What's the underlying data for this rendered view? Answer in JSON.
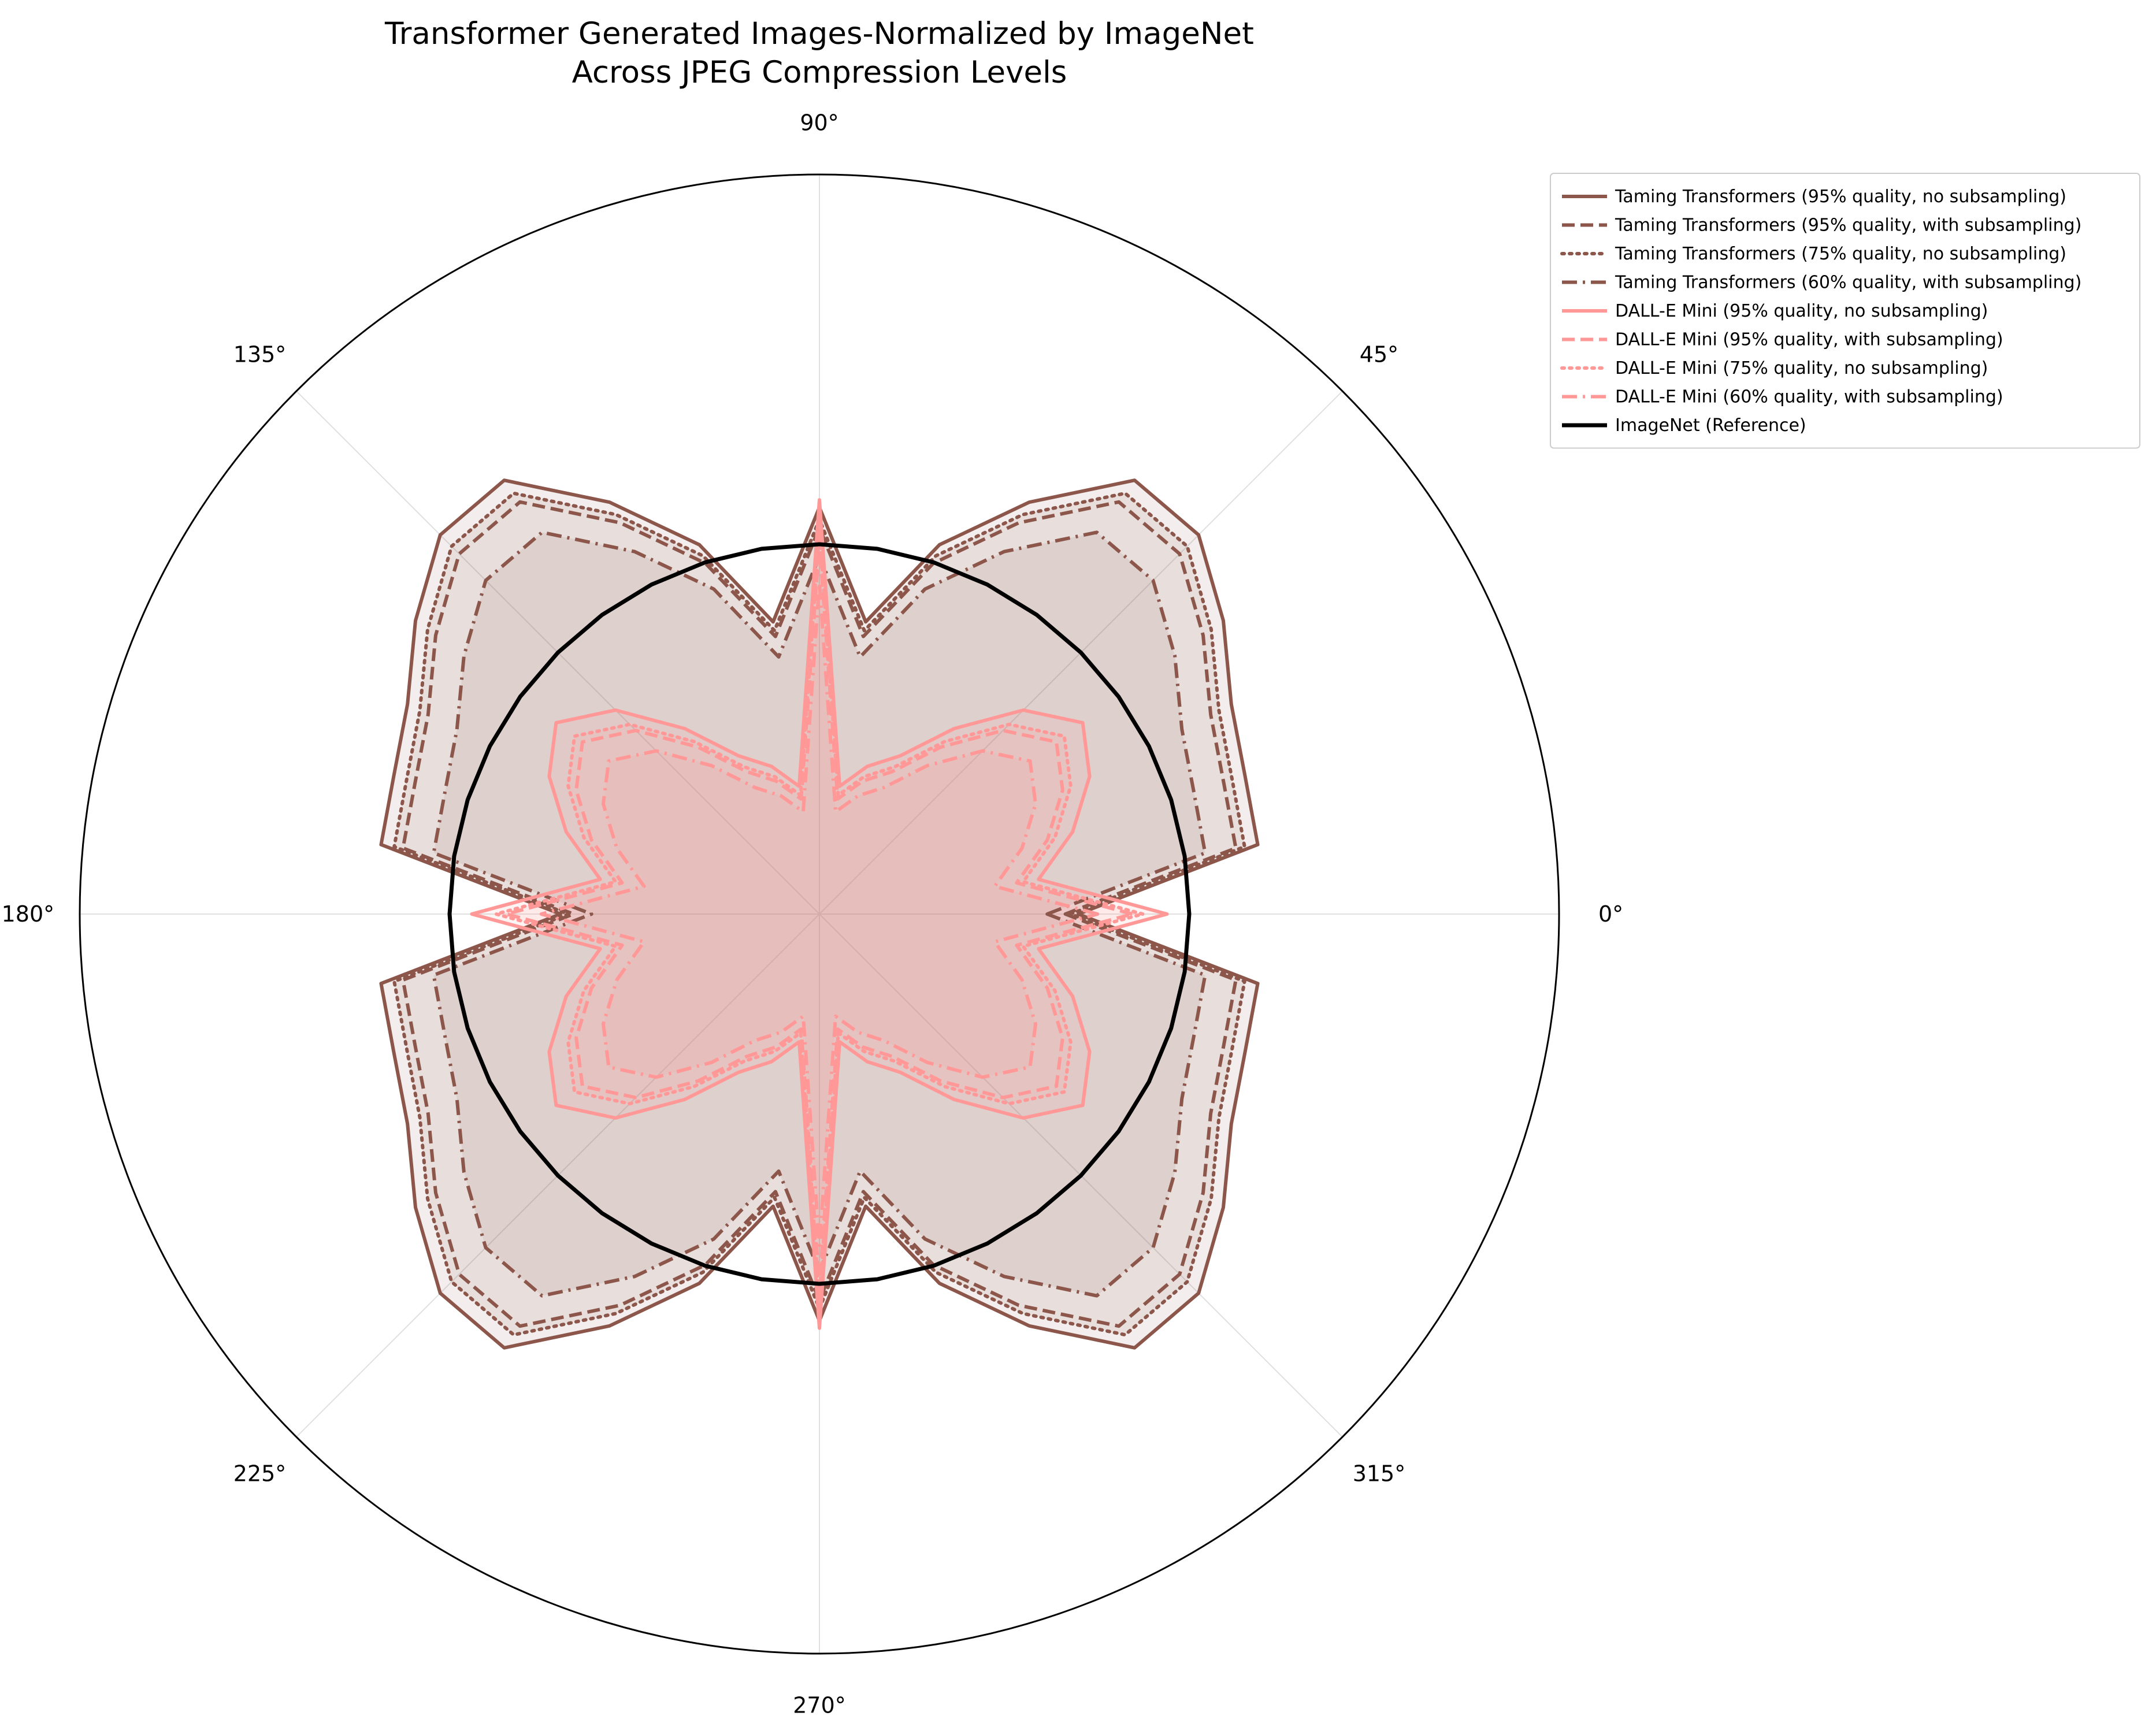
{
  "chart_data": {
    "type": "polar-line",
    "title": [
      "Transformer Generated Images-Normalized by ImageNet",
      "Across JPEG Compression Levels"
    ],
    "theta_ticks": [
      "0°",
      "45°",
      "90°",
      "135°",
      "180°",
      "225°",
      "270°",
      "315°"
    ],
    "theta_tick_degrees": [
      0,
      45,
      90,
      135,
      180,
      225,
      270,
      315
    ],
    "radial_range": [
      0,
      2.0
    ],
    "radial_tick_labels": "hidden",
    "grid": "angular spokes only",
    "legend_position": "outside-top-right",
    "theta_degrees": [
      0,
      9,
      18,
      27,
      36,
      45,
      54,
      63,
      72,
      81,
      90,
      99,
      108,
      117,
      126,
      135,
      144,
      153,
      162,
      171,
      180,
      189,
      198,
      207,
      216,
      225,
      234,
      243,
      252,
      261,
      270,
      279,
      288,
      297,
      306,
      315,
      324,
      333,
      342,
      351
    ],
    "base_series": {
      "tt": [
        0.7,
        1.2,
        1.21,
        1.25,
        1.35,
        1.45,
        1.45,
        1.25,
        1.05,
        0.8,
        1.1,
        0.8,
        1.05,
        1.25,
        1.45,
        1.45,
        1.35,
        1.25,
        1.21,
        1.2,
        0.7,
        1.2,
        1.21,
        1.25,
        1.35,
        1.45,
        1.45,
        1.25,
        1.05,
        0.8,
        1.1,
        0.8,
        1.05,
        1.25,
        1.45,
        1.45,
        1.35,
        1.25,
        1.21,
        1.2
      ],
      "dm": [
        0.94,
        0.6,
        0.72,
        0.82,
        0.88,
        0.78,
        0.62,
        0.48,
        0.42,
        0.35,
        1.12,
        0.35,
        0.42,
        0.48,
        0.62,
        0.78,
        0.88,
        0.82,
        0.72,
        0.6,
        0.94,
        0.6,
        0.72,
        0.82,
        0.88,
        0.78,
        0.62,
        0.48,
        0.42,
        0.35,
        1.12,
        0.35,
        0.42,
        0.48,
        0.62,
        0.78,
        0.88,
        0.82,
        0.72,
        0.6
      ]
    },
    "series": [
      {
        "name": "Taming Transformers (95% quality, no subsampling)",
        "color": "#8c564b",
        "dash": "solid",
        "fill": true,
        "base": "tt",
        "scale": 1.0,
        "width": 6
      },
      {
        "name": "Taming Transformers (95% quality, with subsampling)",
        "color": "#8c564b",
        "dash": "dashed",
        "fill": false,
        "base": "tt",
        "scale": 0.95,
        "width": 6
      },
      {
        "name": "Taming Transformers (75% quality, no subsampling)",
        "color": "#8c564b",
        "dash": "dotted",
        "fill": true,
        "base": "tt",
        "scale": 0.97,
        "width": 6
      },
      {
        "name": "Taming Transformers (60% quality, with subsampling)",
        "color": "#8c564b",
        "dash": "dashdot",
        "fill": true,
        "base": "tt",
        "scale": 0.88,
        "width": 6
      },
      {
        "name": "DALL-E Mini (95% quality, no subsampling)",
        "color": "#ff9896",
        "dash": "solid",
        "fill": true,
        "base": "dm",
        "scale": 1.0,
        "width": 6
      },
      {
        "name": "DALL-E Mini (95% quality, with subsampling)",
        "color": "#ff9896",
        "dash": "dashed",
        "fill": false,
        "base": "dm",
        "scale": 0.9,
        "width": 6
      },
      {
        "name": "DALL-E Mini (75% quality, no subsampling)",
        "color": "#ff9896",
        "dash": "dotted",
        "fill": true,
        "base": "dm",
        "scale": 0.93,
        "width": 6
      },
      {
        "name": "DALL-E Mini (60% quality, with subsampling)",
        "color": "#ff9896",
        "dash": "dashdot",
        "fill": true,
        "base": "dm",
        "scale": 0.8,
        "width": 6
      },
      {
        "name": "ImageNet (Reference)",
        "color": "#000000",
        "dash": "solid",
        "fill": false,
        "base": "ref",
        "value": 1.0,
        "width": 7
      }
    ]
  }
}
